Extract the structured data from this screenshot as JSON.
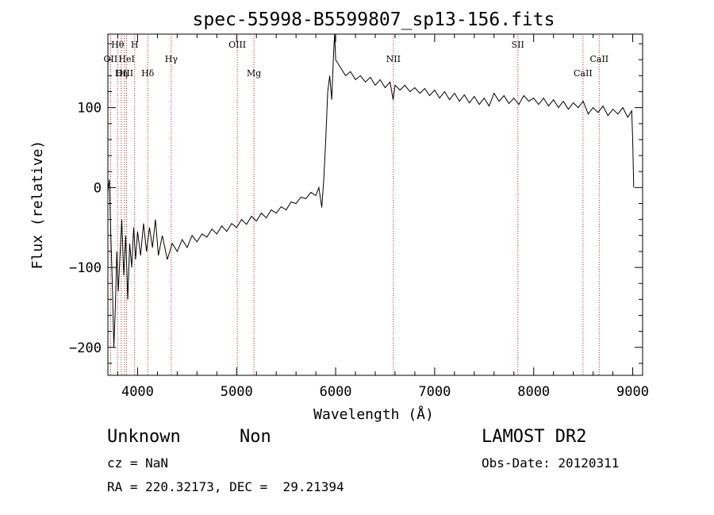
{
  "chart_data": {
    "type": "line",
    "title": "spec-55998-B5599807_sp13-156.fits",
    "xlabel": "Wavelength (Å)",
    "ylabel": "Flux (relative)",
    "xlim": [
      3700,
      9100
    ],
    "ylim": [
      -235,
      192
    ],
    "x_ticks": [
      4000,
      5000,
      6000,
      7000,
      8000,
      9000
    ],
    "y_ticks": [
      -200,
      -100,
      0,
      100
    ],
    "grid": false,
    "series": [
      {
        "color": "#000000",
        "points": [
          [
            3700,
            -5
          ],
          [
            3715,
            10
          ],
          [
            3730,
            -60
          ],
          [
            3745,
            -120
          ],
          [
            3760,
            -200
          ],
          [
            3775,
            -150
          ],
          [
            3790,
            -80
          ],
          [
            3805,
            -130
          ],
          [
            3820,
            -90
          ],
          [
            3840,
            -40
          ],
          [
            3860,
            -110
          ],
          [
            3880,
            -60
          ],
          [
            3900,
            -140
          ],
          [
            3920,
            -70
          ],
          [
            3940,
            -100
          ],
          [
            3960,
            -50
          ],
          [
            3980,
            -90
          ],
          [
            4000,
            -55
          ],
          [
            4030,
            -85
          ],
          [
            4060,
            -45
          ],
          [
            4090,
            -80
          ],
          [
            4120,
            -50
          ],
          [
            4150,
            -75
          ],
          [
            4180,
            -40
          ],
          [
            4210,
            -85
          ],
          [
            4250,
            -60
          ],
          [
            4300,
            -90
          ],
          [
            4350,
            -70
          ],
          [
            4400,
            -80
          ],
          [
            4450,
            -65
          ],
          [
            4500,
            -75
          ],
          [
            4550,
            -60
          ],
          [
            4600,
            -68
          ],
          [
            4650,
            -58
          ],
          [
            4700,
            -62
          ],
          [
            4750,
            -52
          ],
          [
            4800,
            -58
          ],
          [
            4850,
            -48
          ],
          [
            4900,
            -55
          ],
          [
            4950,
            -45
          ],
          [
            5000,
            -50
          ],
          [
            5050,
            -40
          ],
          [
            5100,
            -46
          ],
          [
            5150,
            -36
          ],
          [
            5200,
            -42
          ],
          [
            5250,
            -32
          ],
          [
            5300,
            -38
          ],
          [
            5350,
            -28
          ],
          [
            5400,
            -32
          ],
          [
            5450,
            -24
          ],
          [
            5500,
            -28
          ],
          [
            5550,
            -18
          ],
          [
            5600,
            -20
          ],
          [
            5650,
            -12
          ],
          [
            5700,
            -14
          ],
          [
            5750,
            -6
          ],
          [
            5800,
            -10
          ],
          [
            5830,
            0
          ],
          [
            5860,
            -25
          ],
          [
            5880,
            10
          ],
          [
            5900,
            60
          ],
          [
            5920,
            120
          ],
          [
            5940,
            140
          ],
          [
            5960,
            110
          ],
          [
            5980,
            170
          ],
          [
            5990,
            192
          ],
          [
            6000,
            160
          ],
          [
            6050,
            150
          ],
          [
            6100,
            140
          ],
          [
            6150,
            145
          ],
          [
            6200,
            135
          ],
          [
            6250,
            140
          ],
          [
            6300,
            132
          ],
          [
            6350,
            138
          ],
          [
            6400,
            128
          ],
          [
            6450,
            135
          ],
          [
            6500,
            125
          ],
          [
            6550,
            132
          ],
          [
            6580,
            110
          ],
          [
            6600,
            128
          ],
          [
            6650,
            122
          ],
          [
            6700,
            128
          ],
          [
            6750,
            120
          ],
          [
            6800,
            125
          ],
          [
            6850,
            118
          ],
          [
            6900,
            124
          ],
          [
            6950,
            115
          ],
          [
            7000,
            122
          ],
          [
            7050,
            112
          ],
          [
            7100,
            120
          ],
          [
            7150,
            110
          ],
          [
            7200,
            118
          ],
          [
            7250,
            108
          ],
          [
            7300,
            116
          ],
          [
            7350,
            106
          ],
          [
            7400,
            114
          ],
          [
            7450,
            104
          ],
          [
            7500,
            112
          ],
          [
            7550,
            102
          ],
          [
            7600,
            118
          ],
          [
            7650,
            108
          ],
          [
            7700,
            115
          ],
          [
            7750,
            105
          ],
          [
            7800,
            112
          ],
          [
            7850,
            104
          ],
          [
            7900,
            115
          ],
          [
            7950,
            108
          ],
          [
            8000,
            112
          ],
          [
            8050,
            104
          ],
          [
            8100,
            112
          ],
          [
            8150,
            102
          ],
          [
            8200,
            110
          ],
          [
            8250,
            100
          ],
          [
            8300,
            108
          ],
          [
            8350,
            98
          ],
          [
            8400,
            106
          ],
          [
            8450,
            100
          ],
          [
            8500,
            108
          ],
          [
            8550,
            92
          ],
          [
            8600,
            100
          ],
          [
            8650,
            94
          ],
          [
            8700,
            102
          ],
          [
            8750,
            90
          ],
          [
            8800,
            98
          ],
          [
            8850,
            92
          ],
          [
            8900,
            100
          ],
          [
            8950,
            88
          ],
          [
            8990,
            96
          ],
          [
            9000,
            60
          ],
          [
            9010,
            0
          ]
        ]
      }
    ],
    "line_markers": [
      {
        "label": "Hθ",
        "x": 3798,
        "row": 0
      },
      {
        "label": "H",
        "x": 3970,
        "row": 0
      },
      {
        "label": "OII",
        "x": 3727,
        "row": 1
      },
      {
        "label": "HeI",
        "x": 3889,
        "row": 1
      },
      {
        "label": "Hγ",
        "x": 4340,
        "row": 1
      },
      {
        "label": "OIII",
        "x": 3869,
        "row": 2
      },
      {
        "label": "Hη",
        "x": 3835,
        "row": 2
      },
      {
        "label": "Hδ",
        "x": 4102,
        "row": 2
      },
      {
        "label": "OIII",
        "x": 5007,
        "row": 0
      },
      {
        "label": "Mg",
        "x": 5175,
        "row": 2
      },
      {
        "label": "NII",
        "x": 6583,
        "row": 1
      },
      {
        "label": "SII",
        "x": 7840,
        "row": 0
      },
      {
        "label": "CaII",
        "x": 8662,
        "row": 1
      },
      {
        "label": "CaII",
        "x": 8498,
        "row": 2
      }
    ]
  },
  "info": {
    "class": "Unknown",
    "subclass": "Non",
    "survey": "LAMOST DR2",
    "cz": "cz = NaN",
    "obs_date": "Obs-Date: 20120311",
    "coords": "RA = 220.32173, DEC =  29.21394"
  }
}
